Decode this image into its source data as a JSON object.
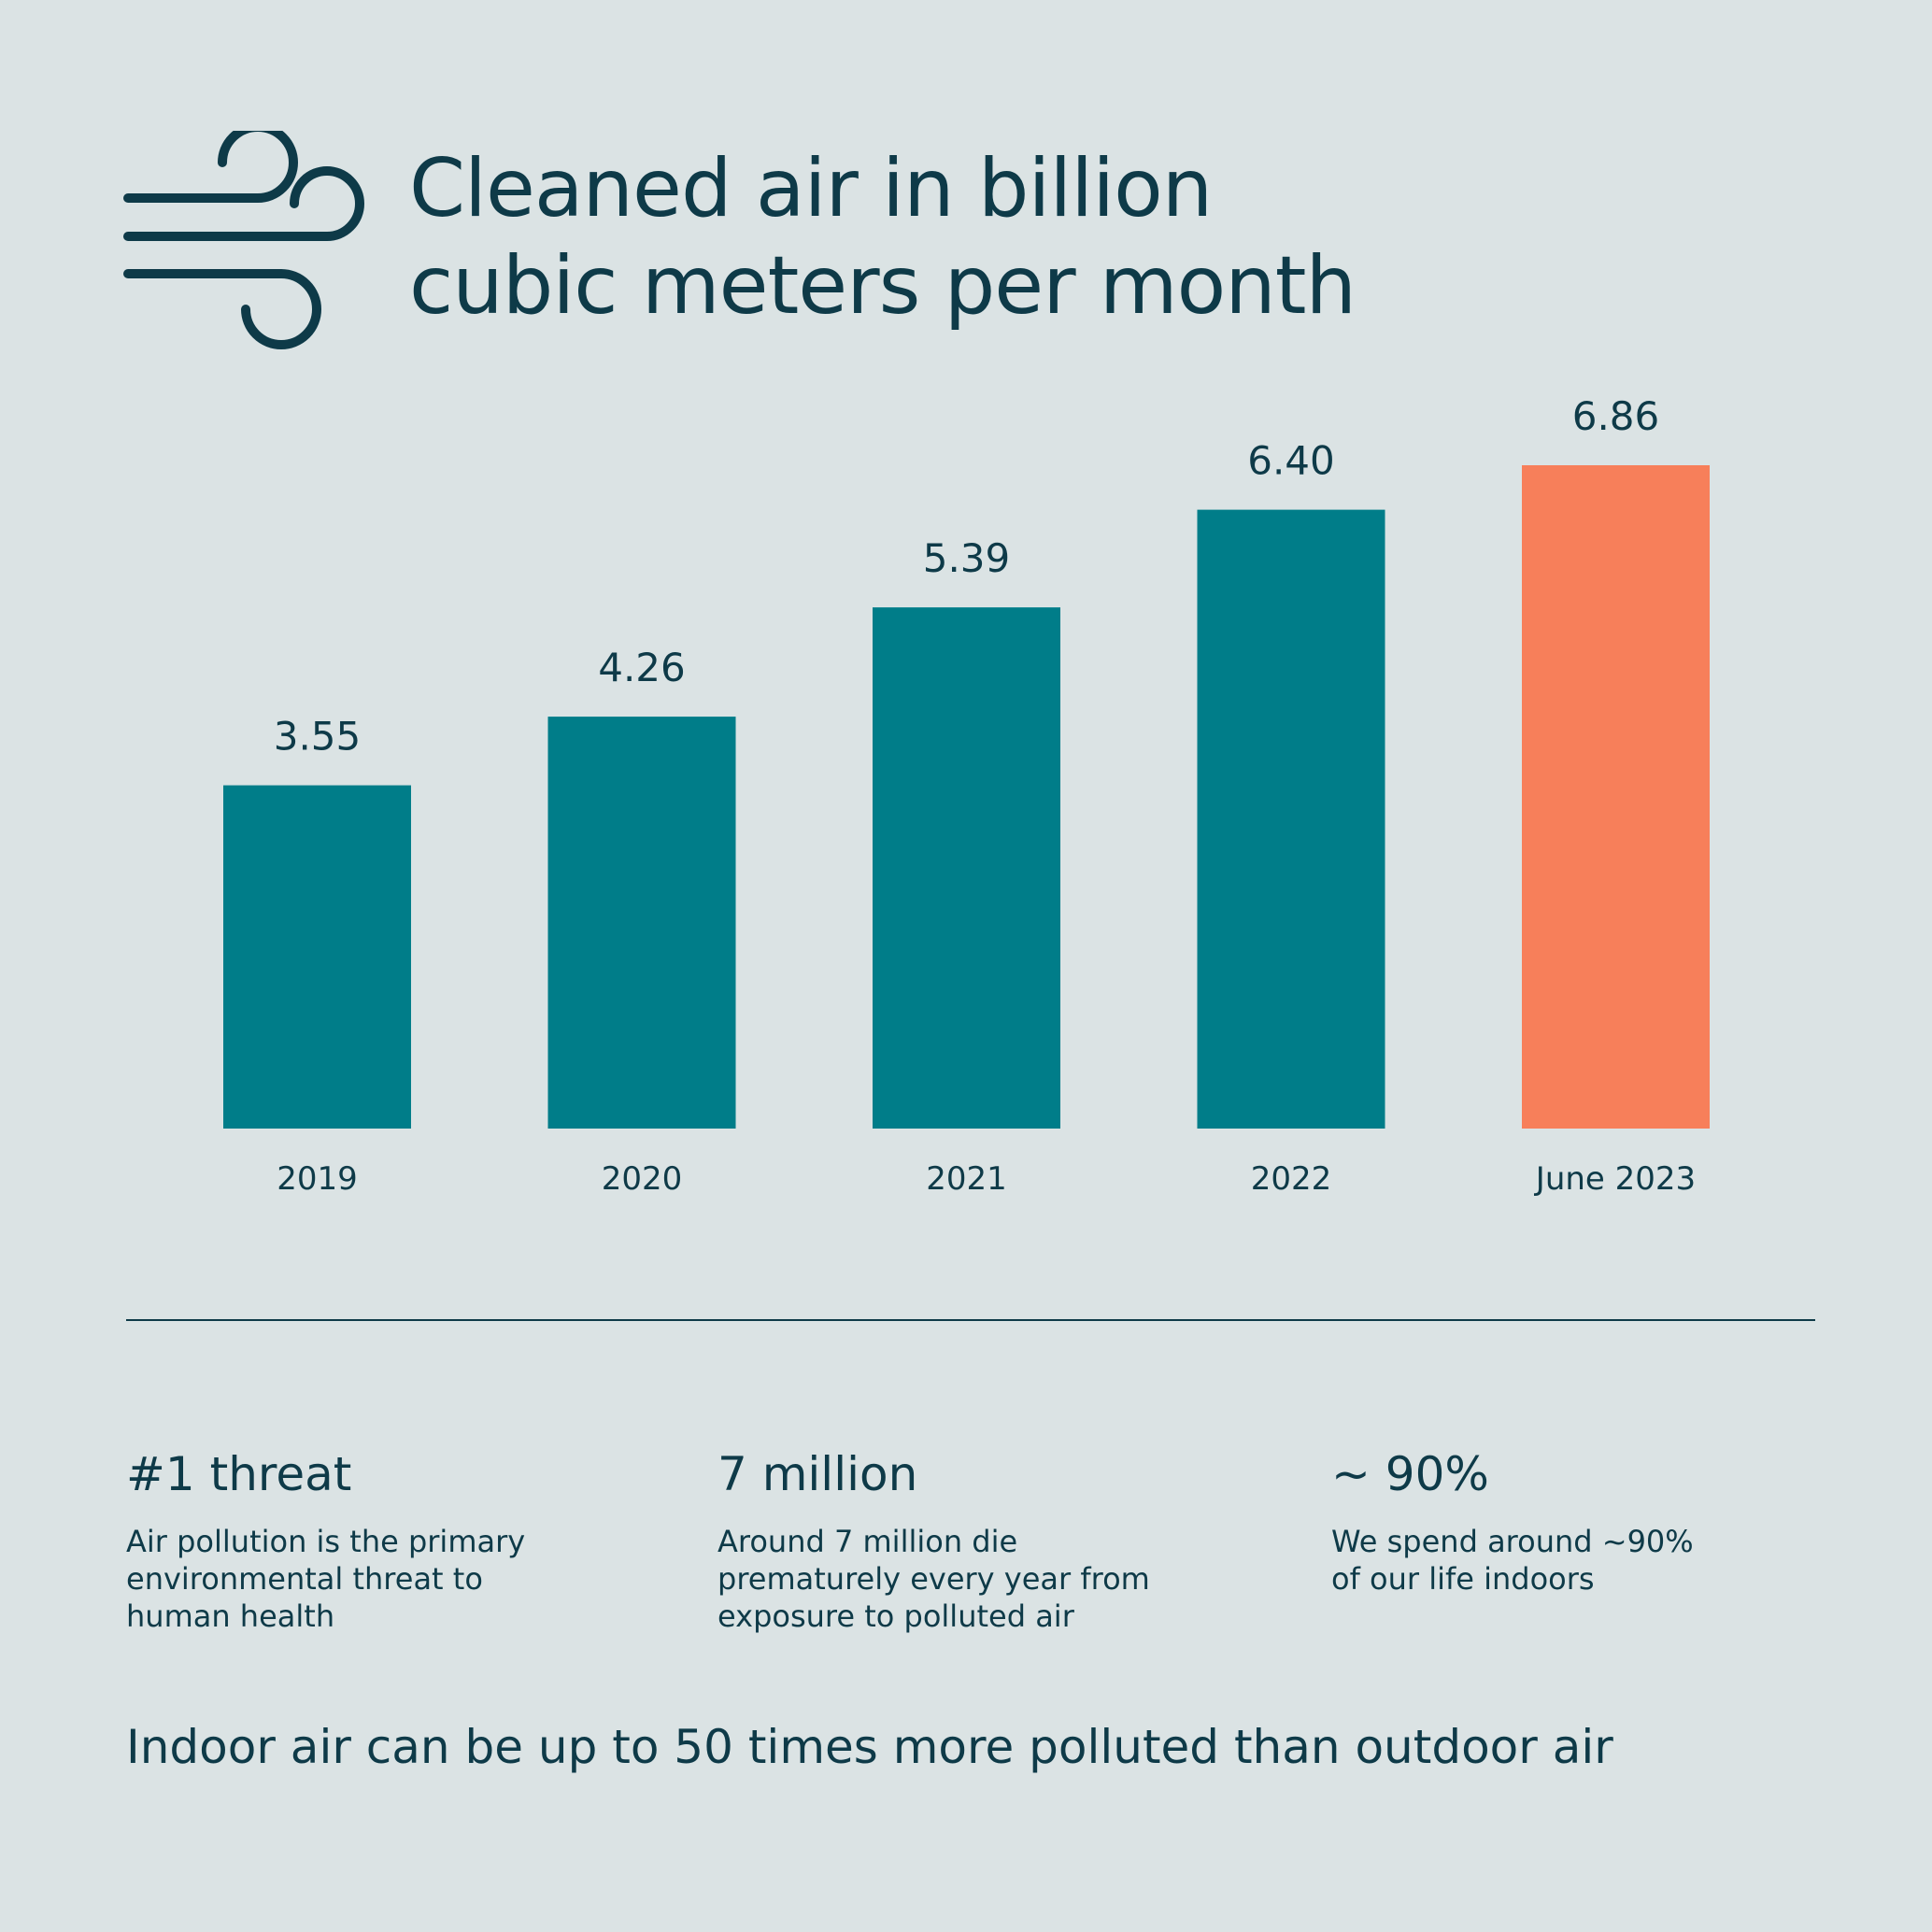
{
  "title": {
    "line1": "Cleaned air in billion",
    "line2": "cubic meters per month"
  },
  "icon": "wind-icon",
  "colors": {
    "background": "#dbe3e4",
    "text": "#0e3a48",
    "bar": "#007d89",
    "highlight": "#f77f5a"
  },
  "chart_data": {
    "type": "bar",
    "title": "Cleaned air in billion cubic meters per month",
    "categories": [
      "2019",
      "2020",
      "2021",
      "2022",
      "June 2023"
    ],
    "values": [
      3.55,
      4.26,
      5.39,
      6.4,
      6.86
    ],
    "value_labels": [
      "3.55",
      "4.26",
      "5.39",
      "6.40",
      "6.86"
    ],
    "highlighted_category": "June 2023",
    "xlabel": "",
    "ylabel": "",
    "ylim": [
      0,
      6.86
    ],
    "grid": false,
    "legend": "none"
  },
  "stats": [
    {
      "heading": "#1 threat",
      "text": "Air pollution is the primary\nenvironmental threat to\nhuman health"
    },
    {
      "heading": "7 million",
      "text": "Around 7 million die\nprematurely every year from\nexposure to polluted air"
    },
    {
      "heading": "~ 90%",
      "text": "We spend around ~90%\nof our life indoors"
    }
  ],
  "footer": "Indoor air can be up to 50 times more polluted than outdoor air"
}
